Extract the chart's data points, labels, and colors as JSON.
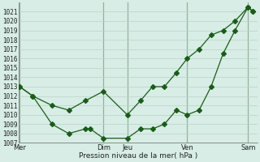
{
  "xlabel": "Pression niveau de la mer( hPa )",
  "background_color": "#d8ede5",
  "grid_color": "#b8d4c8",
  "line_color": "#1a5c1a",
  "marker": "D",
  "marker_size": 3,
  "ylim": [
    1007,
    1022
  ],
  "xlim": [
    0,
    10.0
  ],
  "yticks": [
    1007,
    1008,
    1009,
    1010,
    1011,
    1012,
    1013,
    1014,
    1015,
    1016,
    1017,
    1018,
    1019,
    1020,
    1021
  ],
  "day_labels": [
    "Mer",
    "Dim",
    "Jeu",
    "Ven",
    "Sam"
  ],
  "day_positions": [
    0.05,
    3.55,
    4.55,
    7.05,
    9.6
  ],
  "line1_x": [
    0.05,
    0.6,
    1.4,
    2.1,
    2.8,
    3.55,
    4.55,
    5.1,
    5.6,
    6.1,
    6.6,
    7.05,
    7.55,
    8.05,
    8.55,
    9.05,
    9.6,
    9.8
  ],
  "line1_y": [
    1013.0,
    1012.0,
    1011.0,
    1010.5,
    1011.5,
    1012.5,
    1010.0,
    1011.5,
    1013.0,
    1013.0,
    1014.5,
    1016.0,
    1017.0,
    1018.5,
    1019.0,
    1020.0,
    1021.5,
    1021.0
  ],
  "line2_x": [
    0.05,
    0.6,
    1.4,
    2.1,
    2.8,
    3.0,
    3.55,
    4.55,
    5.1,
    5.6,
    6.1,
    6.6,
    7.05,
    7.55,
    8.05,
    8.55,
    9.05,
    9.6,
    9.8
  ],
  "line2_y": [
    1013.0,
    1012.0,
    1009.0,
    1008.0,
    1008.5,
    1008.5,
    1007.5,
    1007.5,
    1008.5,
    1008.5,
    1009.0,
    1010.5,
    1010.0,
    1010.5,
    1013.0,
    1016.5,
    1019.0,
    1021.5,
    1021.0
  ]
}
